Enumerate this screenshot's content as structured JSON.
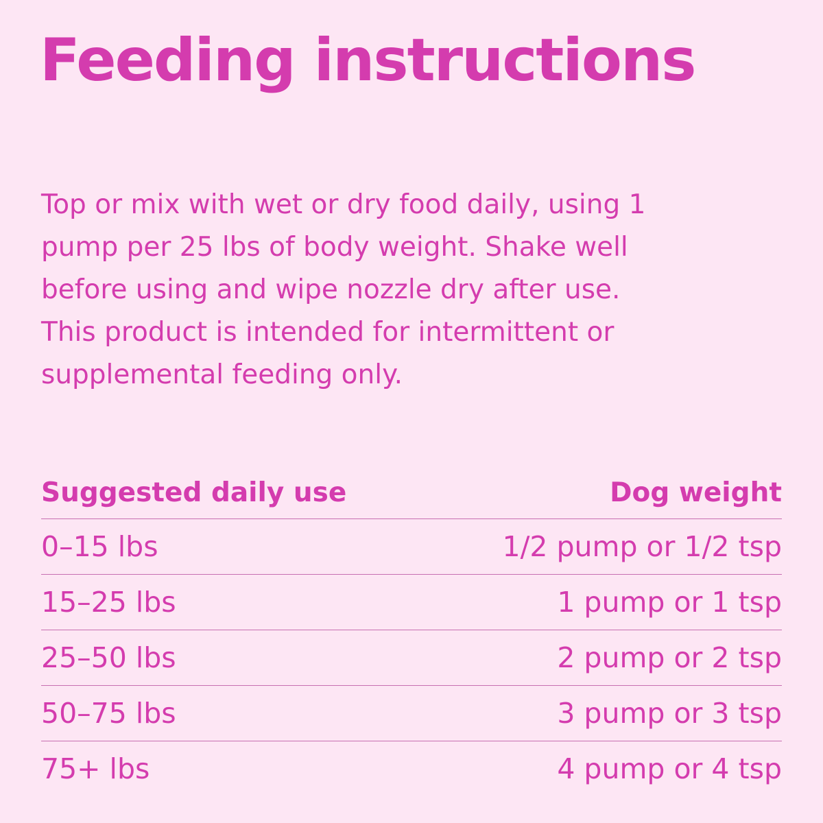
{
  "title": "Feeding instructions",
  "body": [
    "Top or mix with wet or dry food daily, using 1",
    "pump per 25 lbs of body weight. Shake well",
    "before using and wipe nozzle dry after use.",
    "This product is intended for intermittent or",
    "supplemental feeding only."
  ],
  "table": {
    "header": [
      "Suggested daily use",
      "Dog weight"
    ],
    "rows": [
      [
        "0–15 lbs",
        "1/2 pump or 1/2 tsp"
      ],
      [
        "15–25 lbs",
        "1 pump or 1 tsp"
      ],
      [
        "25–50 lbs",
        "2 pump or 2 tsp"
      ],
      [
        "50–75 lbs",
        "3 pump or 3 tsp"
      ],
      [
        "75+ lbs",
        "4 pump or 4 tsp"
      ]
    ]
  }
}
